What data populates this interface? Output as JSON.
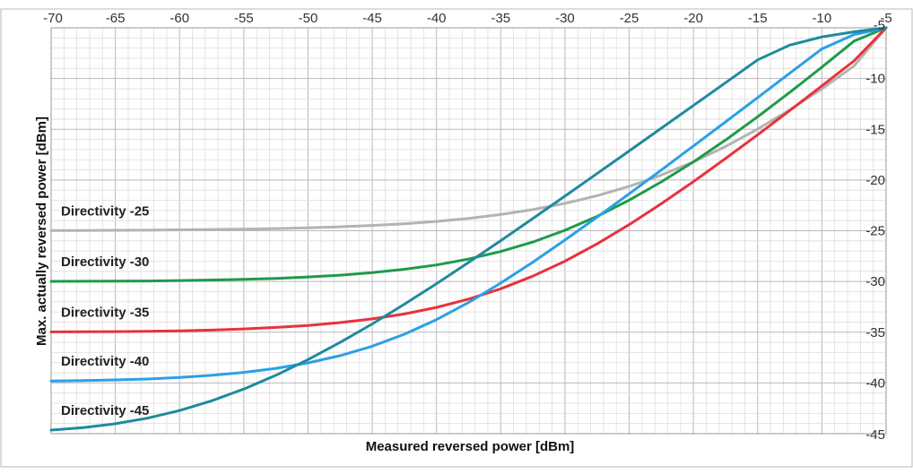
{
  "chart_data": {
    "type": "line",
    "title": "",
    "xlabel": "Measured reversed power [dBm]",
    "ylabel": "Max. actually reversed power [dBm]",
    "xlim": [
      -70,
      -5
    ],
    "ylim": [
      -45,
      -5
    ],
    "x_ticks": [
      -70,
      -65,
      -60,
      -55,
      -50,
      -45,
      -40,
      -35,
      -30,
      -25,
      -20,
      -15,
      -10,
      -5
    ],
    "y_ticks": [
      -5,
      -10,
      -15,
      -20,
      -25,
      -30,
      -35,
      -40,
      -45
    ],
    "x_tick_labels": [
      "-70",
      "-65",
      "-60",
      "-55",
      "-50",
      "-45",
      "-40",
      "-35",
      "-30",
      "-25",
      "-20",
      "-15",
      "-10",
      "-5"
    ],
    "y_tick_labels": [
      "-5",
      "-10",
      "-15",
      "-20",
      "-25",
      "-30",
      "-35",
      "-40",
      "-45"
    ],
    "x_axis_position": "top",
    "y_axis_position": "right",
    "grid": true,
    "minor_grid": true,
    "series": [
      {
        "name": "Directivity -25",
        "directivity": -25,
        "color": "#b3b3b3"
      },
      {
        "name": "Directivity -30",
        "directivity": -30,
        "color": "#1f9a4a"
      },
      {
        "name": "Directivity -35",
        "directivity": -35,
        "color": "#e8323c"
      },
      {
        "name": "Directivity -40",
        "directivity": -40,
        "color": "#2aa0e6"
      },
      {
        "name": "Directivity -45",
        "directivity": -45,
        "color": "#1f8a9e"
      }
    ],
    "x_points": [
      -70,
      -67.5,
      -65,
      -62.5,
      -60,
      -57.5,
      -55,
      -52.5,
      -50,
      -47.5,
      -45,
      -42.5,
      -40,
      -37.5,
      -35,
      -32.5,
      -30,
      -27.5,
      -25,
      -22.5,
      -20,
      -17.5,
      -15,
      -12.5,
      -10,
      -7.5,
      -5
    ],
    "y_values": [
      [
        -24.98,
        -24.97,
        -24.96,
        -24.95,
        -24.91,
        -24.88,
        -24.84,
        -24.79,
        -24.71,
        -24.61,
        -24.48,
        -24.31,
        -24.08,
        -23.79,
        -23.4,
        -22.92,
        -22.31,
        -21.55,
        -20.63,
        -19.52,
        -18.21,
        -16.7,
        -14.99,
        -13.09,
        -11.01,
        -8.76,
        -5.0
      ],
      [
        -29.99,
        -29.98,
        -29.97,
        -29.95,
        -29.91,
        -29.86,
        -29.79,
        -29.7,
        -29.56,
        -29.38,
        -29.13,
        -28.8,
        -28.37,
        -27.79,
        -27.05,
        -26.11,
        -24.96,
        -23.59,
        -21.99,
        -20.19,
        -18.21,
        -16.06,
        -13.77,
        -11.37,
        -8.88,
        -6.32,
        -5.0
      ],
      [
        -34.97,
        -34.96,
        -34.94,
        -34.91,
        -34.86,
        -34.79,
        -34.68,
        -34.53,
        -34.33,
        -34.05,
        -33.69,
        -33.2,
        -32.56,
        -31.74,
        -30.72,
        -29.48,
        -28.0,
        -26.3,
        -24.4,
        -22.34,
        -20.16,
        -17.88,
        -15.54,
        -13.15,
        -10.72,
        -8.27,
        -5.0
      ],
      [
        -39.81,
        -39.77,
        -39.7,
        -39.61,
        -39.46,
        -39.25,
        -38.96,
        -38.56,
        -38.02,
        -37.31,
        -36.38,
        -35.2,
        -33.76,
        -32.07,
        -30.16,
        -28.1,
        -25.92,
        -23.67,
        -21.36,
        -19.02,
        -16.65,
        -14.27,
        -11.88,
        -9.48,
        -7.08,
        -5.67,
        -5.0
      ],
      [
        -44.65,
        -44.4,
        -44.02,
        -43.47,
        -42.72,
        -41.76,
        -40.6,
        -39.24,
        -37.7,
        -36.0,
        -34.18,
        -32.24,
        -30.22,
        -28.13,
        -25.98,
        -23.8,
        -21.59,
        -19.37,
        -17.14,
        -14.9,
        -12.66,
        -10.41,
        -8.16,
        -6.7,
        -5.9,
        -5.4,
        -5.0
      ]
    ]
  }
}
